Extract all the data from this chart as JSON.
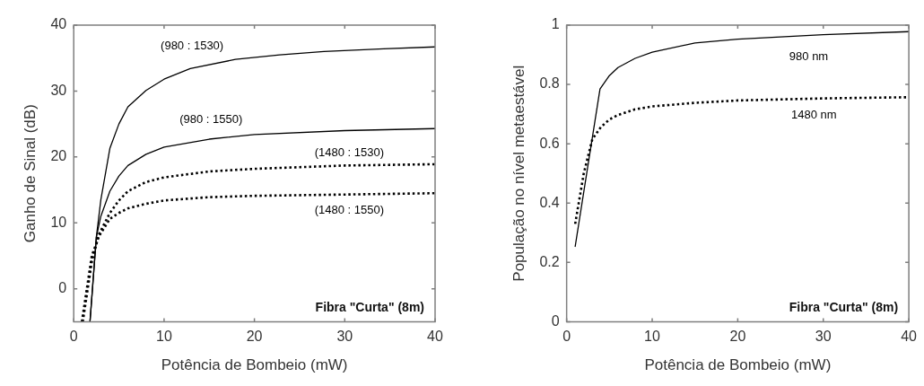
{
  "chart_data": [
    {
      "type": "line",
      "xlabel": "Potência de Bombeio (mW)",
      "ylabel": "Ganho de Sinal (dB)",
      "xlim": [
        0,
        40
      ],
      "ylim": [
        -5,
        40
      ],
      "xticks": [
        0,
        10,
        20,
        30,
        40
      ],
      "yticks": [
        0,
        10,
        20,
        30,
        40
      ],
      "marker": "none",
      "series": [
        {
          "name": "(980 : 1530)",
          "color": "#000000",
          "line_style": "solid",
          "x": [
            1.8,
            2.5,
            3,
            4,
            5,
            6,
            8,
            10,
            12.9,
            17.9,
            22.8,
            27.7,
            34.3,
            40
          ],
          "values": [
            -5,
            7.8,
            13.5,
            21.3,
            25,
            27.6,
            30.1,
            31.8,
            33.4,
            34.8,
            35.5,
            36,
            36.4,
            36.7
          ]
        },
        {
          "name": "(980 : 1550)",
          "color": "#000000",
          "line_style": "solid",
          "x": [
            1.8,
            2.5,
            3,
            4,
            5,
            6,
            8,
            10,
            15,
            20,
            30,
            40
          ],
          "values": [
            -5,
            7.8,
            11,
            14.8,
            17.1,
            18.7,
            20.4,
            21.5,
            22.7,
            23.4,
            24,
            24.3
          ]
        },
        {
          "name": "(1480 : 1530)",
          "color": "#000000",
          "line_style": "dotted",
          "x": [
            1,
            2,
            2.8,
            4,
            5,
            6,
            8,
            10,
            15,
            20,
            30,
            40
          ],
          "values": [
            -5,
            4.1,
            8.3,
            11.5,
            13.4,
            14.8,
            16.2,
            16.9,
            17.8,
            18.2,
            18.7,
            18.9
          ]
        },
        {
          "name": "(1480 : 1550)",
          "color": "#000000",
          "line_style": "dotted",
          "x": [
            0.9,
            2,
            2.8,
            4,
            5,
            6,
            8,
            10,
            15,
            20,
            30,
            40
          ],
          "values": [
            -5,
            5,
            8,
            10.6,
            11.5,
            12.2,
            12.9,
            13.4,
            13.9,
            14.1,
            14.3,
            14.5
          ]
        }
      ],
      "annotations": [
        "Fibra \"Curta\" (8m)"
      ]
    },
    {
      "type": "line",
      "xlabel": "Potência de Bombeio (mW)",
      "ylabel": "População no nível metaestável",
      "xlim": [
        0,
        40
      ],
      "ylim": [
        0,
        1
      ],
      "xticks": [
        0,
        10,
        20,
        30,
        40
      ],
      "yticks": [
        0,
        0.2,
        0.4,
        0.6,
        0.8,
        1
      ],
      "marker": "none",
      "series": [
        {
          "name": "980 nm",
          "color": "#000000",
          "line_style": "solid",
          "x": [
            1,
            3.9,
            5,
            6,
            8,
            10,
            15,
            20,
            30,
            40
          ],
          "values": [
            0.254,
            0.785,
            0.83,
            0.857,
            0.888,
            0.909,
            0.94,
            0.953,
            0.968,
            0.978
          ]
        },
        {
          "name": "1480 nm",
          "color": "#000000",
          "line_style": "dotted",
          "x": [
            1,
            2,
            3,
            4,
            5,
            6,
            8,
            10,
            15,
            20,
            30,
            40
          ],
          "values": [
            0.33,
            0.5,
            0.615,
            0.656,
            0.682,
            0.697,
            0.716,
            0.726,
            0.738,
            0.746,
            0.753,
            0.757
          ]
        }
      ],
      "annotations": [
        "Fibra \"Curta\" (8m)"
      ]
    }
  ]
}
